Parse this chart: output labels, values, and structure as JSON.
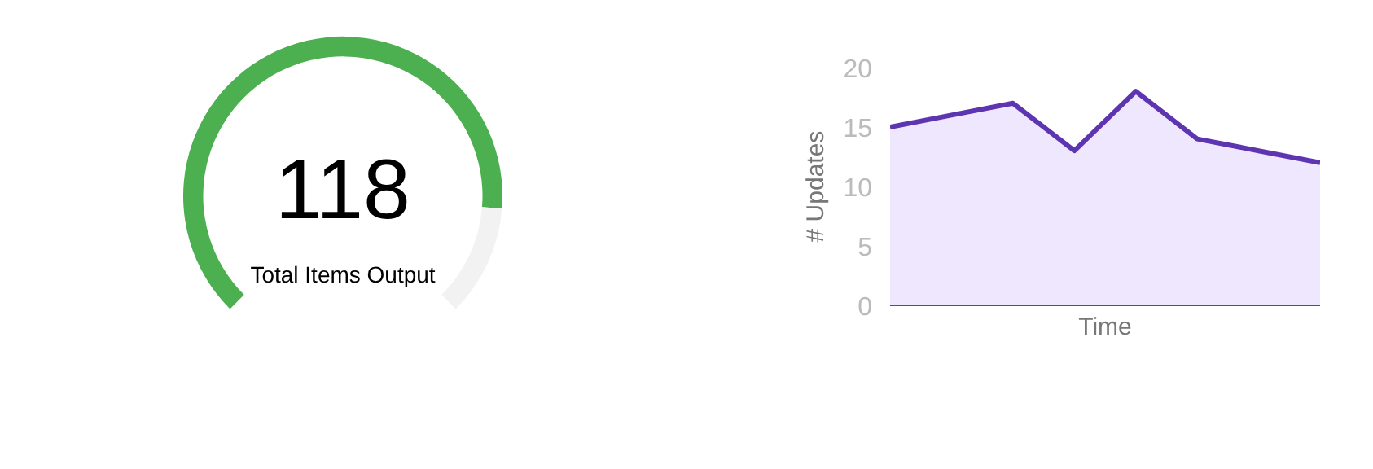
{
  "chart_data": [
    {
      "type": "donut",
      "title": "Total Items Output",
      "annotations": [
        "118"
      ],
      "categories": [
        null,
        null
      ],
      "values": [
        85,
        15
      ],
      "colors": [
        "#4caf50",
        "#f2f2f2"
      ]
    },
    {
      "type": "area",
      "xlabel": "Time",
      "ylabel": "# Updates",
      "categories": [
        null,
        null,
        null,
        null,
        null,
        null,
        null,
        null
      ],
      "series": [
        {
          "color": "#5e35b1",
          "values": [
            15,
            16,
            17,
            13,
            18,
            14,
            13,
            12
          ]
        }
      ],
      "ylim": [
        0,
        20
      ],
      "yticks": [
        0,
        5,
        10,
        15,
        20
      ],
      "grid": false
    }
  ]
}
